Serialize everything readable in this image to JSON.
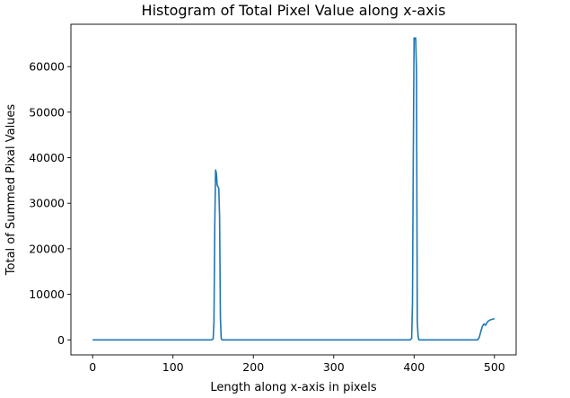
{
  "chart_data": {
    "type": "line",
    "title": "Histogram of Total Pixel Value along x-axis",
    "xlabel": "Length along x-axis in pixels",
    "ylabel": "Total of Summed Pixal Values",
    "xlim": [
      -27,
      527
    ],
    "ylim": [
      -3300,
      69300
    ],
    "xticks": [
      0,
      100,
      200,
      300,
      400,
      500
    ],
    "yticks": [
      0,
      10000,
      20000,
      30000,
      40000,
      50000,
      60000
    ],
    "grid": false,
    "legend": "none",
    "line_color": "#1f77b4",
    "series": [
      {
        "x": [
          0,
          148,
          150,
          151,
          152,
          153,
          154,
          155,
          156,
          157,
          158,
          159,
          160,
          161,
          162,
          170,
          250,
          350,
          395,
          397,
          398,
          399,
          400,
          401,
          402,
          403,
          404,
          405,
          406,
          420,
          470,
          479,
          481,
          483,
          485,
          487,
          489,
          491,
          493,
          495,
          497,
          500
        ],
        "y": [
          0,
          0,
          200,
          4000,
          25000,
          37300,
          36600,
          34000,
          33600,
          33300,
          27000,
          5000,
          300,
          0,
          0,
          0,
          0,
          0,
          0,
          300,
          8000,
          40000,
          66300,
          66100,
          66300,
          59000,
          4000,
          800,
          0,
          0,
          0,
          0,
          500,
          1800,
          3000,
          3500,
          3200,
          3900,
          4200,
          4400,
          4500,
          4700
        ]
      }
    ]
  }
}
